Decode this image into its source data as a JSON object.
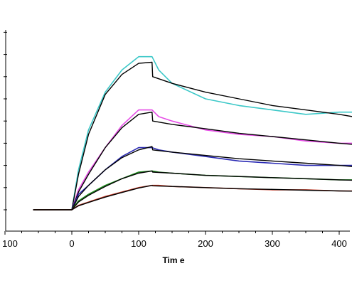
{
  "chart_data": {
    "type": "line",
    "xlabel": "Tim e",
    "ylabel": "",
    "xlim": [
      -100,
      420
    ],
    "ylim": [
      -5,
      85
    ],
    "x_ticks": [
      {
        "value": -100,
        "label": "100"
      },
      {
        "value": 0,
        "label": "0"
      },
      {
        "value": 100,
        "label": "100"
      },
      {
        "value": 200,
        "label": "200"
      },
      {
        "value": 300,
        "label": "300"
      },
      {
        "value": 400,
        "label": "400"
      }
    ],
    "y_ticks": [
      0,
      10,
      20,
      30,
      40,
      50,
      60,
      70,
      80
    ],
    "grid": false,
    "legend": "none",
    "series": [
      {
        "role": "measured",
        "color": "#3cc8c8",
        "x": [
          -58,
          0,
          10,
          25,
          50,
          75,
          100,
          120,
          130,
          150,
          200,
          250,
          300,
          350,
          400,
          420
        ],
        "y": [
          0,
          0,
          18,
          36,
          53,
          63,
          69,
          69,
          63,
          57,
          50,
          47,
          45,
          43,
          44,
          44
        ]
      },
      {
        "role": "fit",
        "color": "#000000",
        "x": [
          -58,
          0,
          10,
          25,
          50,
          75,
          100,
          120,
          121,
          150,
          200,
          250,
          300,
          350,
          400,
          420
        ],
        "y": [
          0,
          0,
          16,
          34,
          52,
          61,
          66,
          66.5,
          60,
          57,
          53,
          50,
          47,
          45,
          43,
          42
        ]
      },
      {
        "role": "measured",
        "color": "#e64de6",
        "x": [
          -58,
          0,
          10,
          25,
          50,
          75,
          100,
          120,
          130,
          150,
          200,
          250,
          300,
          350,
          400,
          420
        ],
        "y": [
          0,
          0,
          9,
          17,
          28,
          38,
          45,
          45,
          42,
          40,
          36,
          34,
          33,
          31,
          30,
          30
        ]
      },
      {
        "role": "fit",
        "color": "#000000",
        "x": [
          -58,
          0,
          10,
          25,
          50,
          75,
          100,
          120,
          121,
          150,
          200,
          250,
          300,
          350,
          400,
          420
        ],
        "y": [
          0,
          0,
          8,
          16,
          28,
          37,
          43,
          44,
          40,
          38.5,
          36.5,
          34.5,
          33,
          31.5,
          30,
          29.5
        ]
      },
      {
        "role": "measured",
        "color": "#2a2ab4",
        "x": [
          -58,
          0,
          10,
          25,
          50,
          75,
          100,
          120,
          130,
          150,
          200,
          250,
          300,
          350,
          400,
          420
        ],
        "y": [
          0,
          0,
          7,
          11,
          18,
          24,
          28,
          28,
          27,
          26,
          24,
          22,
          21,
          20,
          20,
          20
        ]
      },
      {
        "role": "fit",
        "color": "#000000",
        "x": [
          -58,
          0,
          10,
          25,
          50,
          75,
          100,
          120,
          121,
          150,
          200,
          250,
          300,
          350,
          400,
          420
        ],
        "y": [
          0,
          0,
          6,
          11,
          18,
          23.5,
          27,
          28.5,
          27,
          26,
          24.5,
          23,
          22,
          21,
          20,
          19.5
        ]
      },
      {
        "role": "measured",
        "color": "#1e8c1e",
        "x": [
          -58,
          0,
          10,
          25,
          50,
          75,
          100,
          120,
          130,
          150,
          200,
          250,
          300,
          350,
          400,
          420
        ],
        "y": [
          0,
          0,
          4,
          7,
          11,
          14,
          17,
          17.5,
          17,
          16.5,
          15.5,
          15,
          14.5,
          14,
          13.5,
          13.5
        ]
      },
      {
        "role": "fit",
        "color": "#000000",
        "x": [
          -58,
          0,
          10,
          25,
          50,
          75,
          100,
          120,
          121,
          150,
          200,
          250,
          300,
          350,
          400,
          420
        ],
        "y": [
          0,
          0,
          3.5,
          6.5,
          10.5,
          14,
          16.5,
          17.5,
          17,
          16.5,
          15.5,
          15,
          14.5,
          14,
          13.5,
          13.3
        ]
      },
      {
        "role": "measured",
        "color": "#c83c28",
        "x": [
          -58,
          0,
          10,
          25,
          50,
          75,
          100,
          120,
          130,
          150,
          200,
          250,
          300,
          350,
          400,
          420
        ],
        "y": [
          0,
          0,
          2,
          3.5,
          6,
          8,
          10,
          11,
          11,
          10.5,
          10,
          9.5,
          9,
          9,
          8.5,
          8.5
        ]
      },
      {
        "role": "fit",
        "color": "#000000",
        "x": [
          -58,
          0,
          10,
          25,
          50,
          75,
          100,
          120,
          121,
          150,
          200,
          250,
          300,
          350,
          400,
          420
        ],
        "y": [
          0,
          0,
          1.8,
          3.3,
          5.7,
          7.8,
          9.8,
          11,
          10.8,
          10.5,
          10,
          9.5,
          9.2,
          8.8,
          8.5,
          8.4
        ]
      }
    ]
  }
}
